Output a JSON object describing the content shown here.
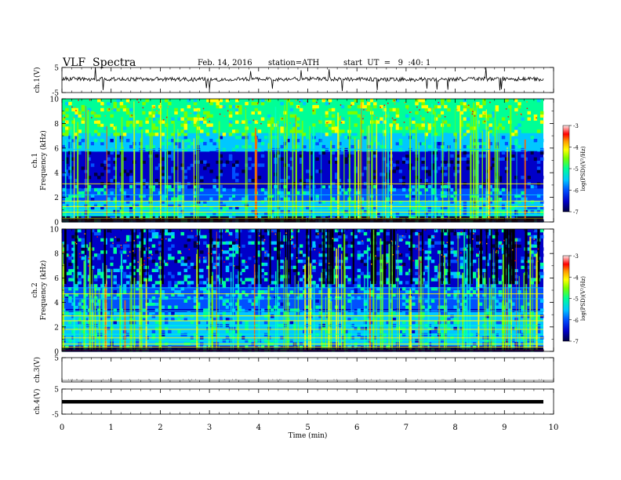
{
  "header": {
    "title": "VLF  Spectra",
    "date": "Feb. 14, 2016",
    "station": "station=ATH",
    "start_ut": "start  UT  =   9  :40: 1"
  },
  "colors": {
    "spectrogram_scale": [
      "#000040",
      "#0000c8",
      "#0050ff",
      "#00c8ff",
      "#00ff96",
      "#78ff00",
      "#ffff00",
      "#ff9600",
      "#ff0000",
      "#ffe6e6"
    ],
    "trace": "#000000",
    "background": "#ffffff"
  },
  "chart_data": [
    {
      "type": "line",
      "panel": "ch1-waveform",
      "ylabel": "ch.1(V)",
      "ylim": [
        -5,
        5
      ],
      "yticks": [
        "5",
        "-5"
      ],
      "x": [
        0,
        1,
        2,
        3,
        4,
        5,
        6,
        7,
        8,
        9,
        9.8
      ],
      "series": [
        {
          "values": [
            0.5,
            0.3,
            0.4,
            0.2,
            0.3,
            0.4,
            0.3,
            0.2,
            0.3,
            0.4,
            0.3
          ]
        }
      ]
    },
    {
      "type": "heatmap",
      "panel": "ch1-spectrogram",
      "ylabel": "ch.1\nFrequency  (kHz)",
      "ylim": [
        0,
        10
      ],
      "yticks": [
        "0",
        "2",
        "4",
        "6",
        "8",
        "10"
      ],
      "colorbar": {
        "label": "log(PSD)(V²/Hz)",
        "range": [
          -7,
          -3
        ],
        "ticks": [
          "-3",
          "-4",
          "-5",
          "-6",
          "-7"
        ]
      }
    },
    {
      "type": "heatmap",
      "panel": "ch2-spectrogram",
      "ylabel": "ch.2\nFrequency  (kHz)",
      "ylim": [
        0,
        10
      ],
      "yticks": [
        "0",
        "2",
        "4",
        "6",
        "8",
        "10"
      ],
      "colorbar": {
        "label": "log(PSD)(V²/Hz)",
        "range": [
          -7,
          -3
        ],
        "ticks": [
          "-3",
          "-4",
          "-5",
          "-6",
          "-7"
        ]
      }
    },
    {
      "type": "line",
      "panel": "ch3-waveform",
      "ylabel": "ch.3(V)",
      "ylim": [
        -5,
        5
      ],
      "yticks": [
        "5"
      ],
      "x": [
        0,
        9.8
      ],
      "series": [
        {
          "values": [
            -5,
            -5
          ]
        }
      ]
    },
    {
      "type": "line",
      "panel": "ch4-waveform",
      "ylabel": "ch.4(V)",
      "ylim": [
        -5,
        5
      ],
      "yticks": [
        "5",
        "-5"
      ],
      "x": [
        0,
        9.8
      ],
      "series": [
        {
          "values": [
            0,
            0
          ]
        }
      ]
    }
  ],
  "xaxis": {
    "label": "Time  (min)",
    "range": [
      0,
      10
    ],
    "ticks": [
      "0",
      "1",
      "2",
      "3",
      "4",
      "5",
      "6",
      "7",
      "8",
      "9",
      "10"
    ]
  }
}
